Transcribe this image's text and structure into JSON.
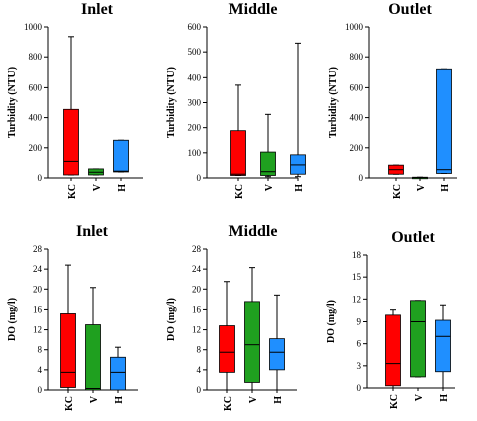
{
  "chart_data": [
    {
      "type": "box",
      "title": "Inlet",
      "ylabel": "Turbidity (NTU)",
      "ylim": [
        0,
        1000
      ],
      "yticks": [
        0,
        200,
        400,
        600,
        800,
        1000
      ],
      "grid": false,
      "categories": [
        "KC",
        "V",
        "H"
      ],
      "colors": [
        "#ff0000",
        "#1fa01f",
        "#1f8fff"
      ],
      "boxes": [
        {
          "min": 20,
          "q1": 20,
          "median": 110,
          "q3": 455,
          "max": 935
        },
        {
          "min": 20,
          "q1": 20,
          "median": 38,
          "q3": 60,
          "max": 60
        },
        {
          "min": 40,
          "q1": 40,
          "median": 45,
          "q3": 250,
          "max": 250
        }
      ]
    },
    {
      "type": "box",
      "title": "Middle",
      "ylabel": "Turbidity (NTU)",
      "ylim": [
        0,
        600
      ],
      "yticks": [
        0,
        100,
        200,
        300,
        400,
        500,
        600
      ],
      "grid": false,
      "categories": [
        "KC",
        "V",
        "H"
      ],
      "colors": [
        "#ff0000",
        "#1fa01f",
        "#1f8fff"
      ],
      "boxes": [
        {
          "min": 10,
          "q1": 10,
          "median": 15,
          "q3": 188,
          "max": 370
        },
        {
          "min": 5,
          "q1": 10,
          "median": 25,
          "q3": 103,
          "max": 253
        },
        {
          "min": 5,
          "q1": 15,
          "median": 52,
          "q3": 92,
          "max": 535
        }
      ]
    },
    {
      "type": "box",
      "title": "Outlet",
      "ylabel": "Turbidity (NTU)",
      "ylim": [
        0,
        1000
      ],
      "yticks": [
        0,
        200,
        400,
        600,
        800,
        1000
      ],
      "grid": false,
      "categories": [
        "KC",
        "V",
        "H"
      ],
      "colors": [
        "#ff0000",
        "#1fa01f",
        "#1f8fff"
      ],
      "boxes": [
        {
          "min": 25,
          "q1": 25,
          "median": 55,
          "q3": 85,
          "max": 85
        },
        {
          "min": 0,
          "q1": 0,
          "median": 3,
          "q3": 5,
          "max": 5
        },
        {
          "min": 30,
          "q1": 30,
          "median": 55,
          "q3": 720,
          "max": 720
        }
      ]
    },
    {
      "type": "box",
      "title": "Inlet",
      "ylabel": "DO (mg/l)",
      "ylim": [
        0,
        28
      ],
      "yticks": [
        0,
        4,
        8,
        12,
        16,
        20,
        24,
        28
      ],
      "grid": false,
      "categories": [
        "KC",
        "V",
        "H"
      ],
      "colors": [
        "#ff0000",
        "#1fa01f",
        "#1f8fff"
      ],
      "boxes": [
        {
          "min": 0,
          "q1": 0.5,
          "median": 3.5,
          "q3": 15.2,
          "max": 24.8
        },
        {
          "min": 0,
          "q1": 0,
          "median": 0.3,
          "q3": 13,
          "max": 20.3
        },
        {
          "min": 0,
          "q1": 0,
          "median": 3.5,
          "q3": 6.5,
          "max": 8.5
        }
      ]
    },
    {
      "type": "box",
      "title": "Middle",
      "ylabel": "DO (mg/l)",
      "ylim": [
        0,
        28
      ],
      "yticks": [
        0,
        4,
        8,
        12,
        16,
        20,
        24,
        28
      ],
      "grid": false,
      "categories": [
        "KC",
        "V",
        "H"
      ],
      "colors": [
        "#ff0000",
        "#1fa01f",
        "#1f8fff"
      ],
      "boxes": [
        {
          "min": 0,
          "q1": 3.5,
          "median": 7.5,
          "q3": 12.8,
          "max": 21.5
        },
        {
          "min": 0,
          "q1": 1.5,
          "median": 9,
          "q3": 17.5,
          "max": 24.3
        },
        {
          "min": 0,
          "q1": 4,
          "median": 7.5,
          "q3": 10.2,
          "max": 18.8
        }
      ]
    },
    {
      "type": "box",
      "title": "Outlet",
      "ylabel": "DO (mg/l)",
      "ylim": [
        0,
        18
      ],
      "yticks": [
        0,
        3,
        6,
        9,
        12,
        15,
        18
      ],
      "grid": false,
      "categories": [
        "KC",
        "V",
        "H"
      ],
      "colors": [
        "#ff0000",
        "#1fa01f",
        "#1f8fff"
      ],
      "boxes": [
        {
          "min": 0,
          "q1": 0.3,
          "median": 3.3,
          "q3": 9.9,
          "max": 10.6
        },
        {
          "min": 1.5,
          "q1": 1.5,
          "median": 9,
          "q3": 11.8,
          "max": 11.8
        },
        {
          "min": 0,
          "q1": 2.2,
          "median": 7,
          "q3": 9.2,
          "max": 11.2
        }
      ]
    }
  ]
}
